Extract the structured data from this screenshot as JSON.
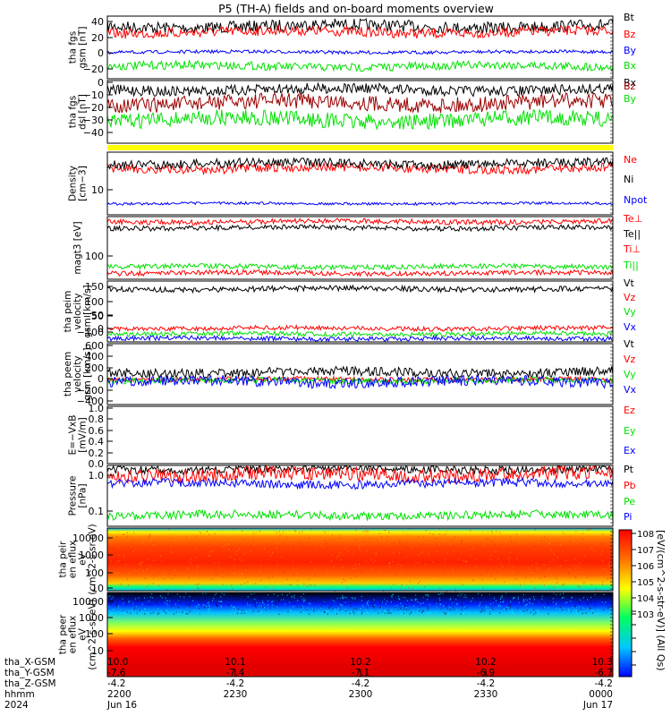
{
  "title": "P5 (TH-A) fields and on-board moments overview",
  "colors": {
    "black": "#000000",
    "red": "#ff0000",
    "green": "#00e000",
    "blue": "#0000ff",
    "darkred": "#990000",
    "yellow": "#ffff00",
    "navy": "#0000aa"
  },
  "colorbar": {
    "label": "[eV/(cm^2-s-str-eV)] (All Qs)",
    "ticks": [
      "10^8",
      "10^7",
      "10^6",
      "10^5",
      "10^4",
      "10^3"
    ]
  },
  "x_axis": {
    "rows": [
      {
        "label": "tha_X-GSM",
        "values": [
          "10.0",
          "10.1",
          "10.2",
          "10.2",
          "10.3"
        ]
      },
      {
        "label": "tha_Y-GSM",
        "values": [
          "-7.6",
          "-7.4",
          "-7.1",
          "-6.9",
          "-6.7"
        ]
      },
      {
        "label": "tha_Z-GSM",
        "values": [
          "-4.2",
          "-4.2",
          "-4.2",
          "-4.2",
          "-4.2"
        ]
      },
      {
        "label": "hhmm",
        "values": [
          "2200",
          "2230",
          "2300",
          "2330",
          "0000"
        ]
      },
      {
        "label": "2024",
        "values": [
          "Jun 16",
          "",
          "",
          "",
          "Jun 17"
        ]
      }
    ]
  },
  "chart_data": [
    {
      "type": "line",
      "ylabel": "tha fgs gsm [nT]",
      "ylim": [
        -30,
        45
      ],
      "ticks": [
        "40",
        "20",
        "0",
        "−20"
      ],
      "series": [
        {
          "name": "Bt",
          "color": "#000000",
          "base": 33,
          "amp": 7
        },
        {
          "name": "Bz",
          "color": "#ff0000",
          "base": 26,
          "amp": 6
        },
        {
          "name": "By",
          "color": "#0000ff",
          "base": 2,
          "amp": 2
        },
        {
          "name": "Bx",
          "color": "#00e000",
          "base": -15,
          "amp": 5
        }
      ]
    },
    {
      "type": "line",
      "ylabel": "tha fgs dsl [nT]",
      "ylim": [
        -48,
        0
      ],
      "ticks": [
        "0",
        "−10",
        "−20",
        "−30",
        "−40"
      ],
      "series": [
        {
          "name": "Bx",
          "color": "#000000",
          "base": -7,
          "amp": 4
        },
        {
          "name": "Bz",
          "color": "#990000",
          "base": -17,
          "amp": 6
        },
        {
          "name": "By",
          "color": "#00e000",
          "base": -30,
          "amp": 6
        }
      ]
    },
    {
      "type": "line",
      "ylabel": "Density [cm−3]",
      "ylim": "log",
      "ticks": [
        "10"
      ],
      "series": [
        {
          "name": "Ne",
          "color": "#ff0000"
        },
        {
          "name": "Ni",
          "color": "#000000"
        },
        {
          "name": "Npot",
          "color": "#0000ff"
        }
      ]
    },
    {
      "type": "line",
      "ylabel": "magt3 [eV]",
      "ylim": "log",
      "ticks": [
        "100"
      ],
      "series": [
        {
          "name": "Te⊥",
          "color": "#ff0000"
        },
        {
          "name": "Te||",
          "color": "#000000"
        },
        {
          "name": "Ti⊥",
          "color": "#ff0000"
        },
        {
          "name": "Ti||",
          "color": "#00e000"
        }
      ]
    },
    {
      "type": "line",
      "ylabel": "tha peim velocity gsm [km/s]",
      "ylim": [
        -110,
        160
      ],
      "ticks": [
        "150",
        "100",
        "50",
        "0",
        "−50",
        "−100"
      ],
      "series": [
        {
          "name": "Vt",
          "color": "#000000",
          "base": 125,
          "amp": 12
        },
        {
          "name": "Vz",
          "color": "#ff0000",
          "base": -50,
          "amp": 10
        },
        {
          "name": "Vy",
          "color": "#00e000",
          "base": -75,
          "amp": 10
        },
        {
          "name": "Vx",
          "color": "#0000ff",
          "base": -95,
          "amp": 10
        }
      ]
    },
    {
      "type": "line",
      "ylabel": "tha peem velocity gsm [km/s]",
      "ylim": [
        -420,
        620
      ],
      "ticks": [
        "600",
        "400",
        "200",
        "0",
        "−200",
        "−400"
      ],
      "series": [
        {
          "name": "Vt",
          "color": "#000000",
          "base": 130,
          "amp": 80
        },
        {
          "name": "Vz",
          "color": "#ff0000",
          "base": 10,
          "amp": 40
        },
        {
          "name": "Vy",
          "color": "#00e000",
          "base": -10,
          "amp": 50
        },
        {
          "name": "Vx",
          "color": "#0000ff",
          "base": -30,
          "amp": 90
        }
      ]
    },
    {
      "type": "line",
      "ylabel": "E=−VxB [mV/m]",
      "ylim": [
        0,
        1
      ],
      "ticks": [
        "1.0",
        "0.8",
        "0.6",
        "0.4",
        "0.2",
        "0.0"
      ],
      "series": [
        {
          "name": "Ez",
          "color": "#ff0000"
        },
        {
          "name": "Ey",
          "color": "#00e000"
        },
        {
          "name": "Ex",
          "color": "#0000ff"
        }
      ]
    },
    {
      "type": "line",
      "ylabel": "Pressure [nPa]",
      "ylim": "log",
      "ticks": [
        "1.0",
        "0.1"
      ],
      "series": [
        {
          "name": "Pt",
          "color": "#000000"
        },
        {
          "name": "Pb",
          "color": "#ff0000"
        },
        {
          "name": "Pe",
          "color": "#00e000"
        },
        {
          "name": "Pi",
          "color": "#0000ff"
        }
      ]
    },
    {
      "type": "heatmap",
      "ylabel": "tha peir en eflux eV (cm^2-s-sr-eV)",
      "ticks": [
        "10000",
        "1000",
        "100",
        "10"
      ]
    },
    {
      "type": "heatmap",
      "ylabel": "tha peer en eflux eV (cm^2-s-sr-eV)",
      "ticks": [
        "10000",
        "1000",
        "100",
        "10"
      ]
    }
  ]
}
